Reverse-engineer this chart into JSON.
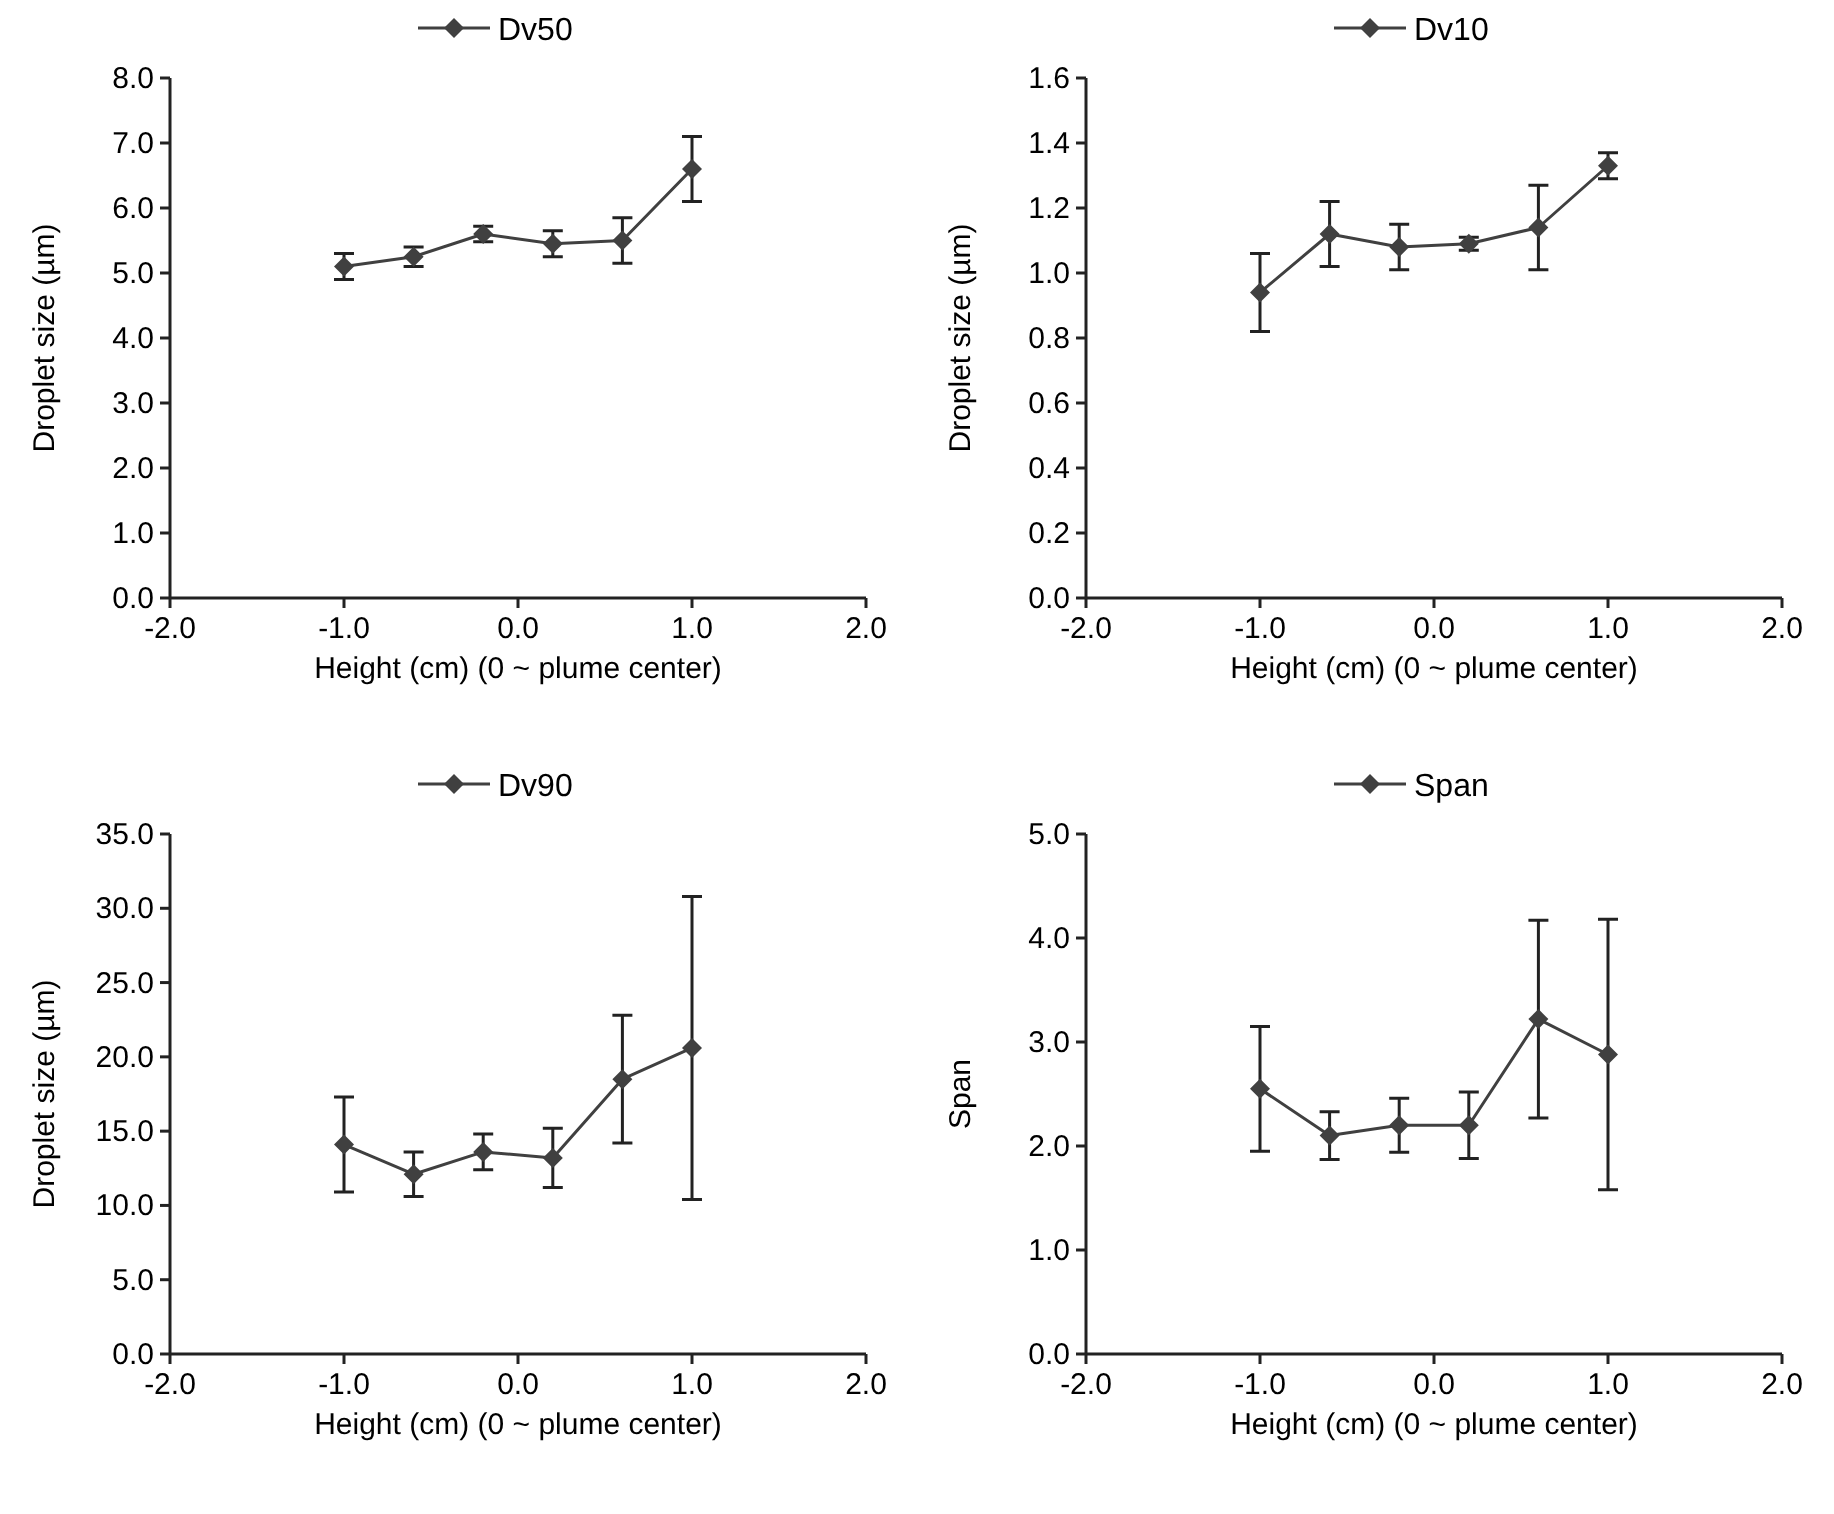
{
  "chart_data": [
    {
      "type": "line",
      "xlabel": "Height (cm) (0 ~ plume center)",
      "ylabel": "Droplet size (µm)",
      "x": [
        -1,
        -0.6,
        -0.2,
        0.2,
        0.6,
        1
      ],
      "series": [
        {
          "name": "Dv50",
          "color": "#404040",
          "values": [
            5.1,
            5.25,
            5.6,
            5.45,
            5.5,
            6.6
          ],
          "errors": [
            0.2,
            0.15,
            0.12,
            0.2,
            0.35,
            0.5
          ]
        }
      ],
      "xlim": [
        -2,
        2
      ],
      "xticks": [
        {
          "value": -2,
          "label": "-2.0"
        },
        {
          "value": -1,
          "label": "-1.0"
        },
        {
          "value": 0,
          "label": "0.0"
        },
        {
          "value": 1,
          "label": "1.0"
        },
        {
          "value": 2,
          "label": "2.0"
        }
      ],
      "ylim": [
        0,
        8
      ],
      "yticks": [
        {
          "value": 0,
          "label": "0.0"
        },
        {
          "value": 1,
          "label": "1.0"
        },
        {
          "value": 2,
          "label": "2.0"
        },
        {
          "value": 3,
          "label": "3.0"
        },
        {
          "value": 4,
          "label": "4.0"
        },
        {
          "value": 5,
          "label": "5.0"
        },
        {
          "value": 6,
          "label": "6.0"
        },
        {
          "value": 7,
          "label": "7.0"
        },
        {
          "value": 8,
          "label": "8.0"
        }
      ],
      "legend": "top",
      "marker": "diamond",
      "grid": false
    },
    {
      "type": "line",
      "xlabel": "Height (cm) (0 ~ plume center)",
      "ylabel": "Droplet size (µm)",
      "x": [
        -1,
        -0.6,
        -0.2,
        0.2,
        0.6,
        1
      ],
      "series": [
        {
          "name": "Dv10",
          "color": "#404040",
          "values": [
            0.94,
            1.12,
            1.08,
            1.09,
            1.14,
            1.33
          ],
          "errors": [
            0.12,
            0.1,
            0.07,
            0.02,
            0.13,
            0.04
          ]
        }
      ],
      "xlim": [
        -2,
        2
      ],
      "xticks": [
        {
          "value": -2,
          "label": "-2.0"
        },
        {
          "value": -1,
          "label": "-1.0"
        },
        {
          "value": 0,
          "label": "0.0"
        },
        {
          "value": 1,
          "label": "1.0"
        },
        {
          "value": 2,
          "label": "2.0"
        }
      ],
      "ylim": [
        0,
        1.6
      ],
      "yticks": [
        {
          "value": 0,
          "label": "0.0"
        },
        {
          "value": 0.2,
          "label": "0.2"
        },
        {
          "value": 0.4,
          "label": "0.4"
        },
        {
          "value": 0.6,
          "label": "0.6"
        },
        {
          "value": 0.8,
          "label": "0.8"
        },
        {
          "value": 1,
          "label": "1.0"
        },
        {
          "value": 1.2,
          "label": "1.2"
        },
        {
          "value": 1.4,
          "label": "1.4"
        },
        {
          "value": 1.6,
          "label": "1.6"
        }
      ],
      "legend": "top",
      "marker": "diamond",
      "grid": false
    },
    {
      "type": "line",
      "xlabel": "Height (cm) (0 ~ plume center)",
      "ylabel": "Droplet size (µm)",
      "x": [
        -1,
        -0.6,
        -0.2,
        0.2,
        0.6,
        1
      ],
      "series": [
        {
          "name": "Dv90",
          "color": "#404040",
          "values": [
            14.1,
            12.1,
            13.6,
            13.2,
            18.5,
            20.6
          ],
          "errors": [
            3.2,
            1.5,
            1.2,
            2.0,
            4.3,
            10.2
          ]
        }
      ],
      "xlim": [
        -2,
        2
      ],
      "xticks": [
        {
          "value": -2,
          "label": "-2.0"
        },
        {
          "value": -1,
          "label": "-1.0"
        },
        {
          "value": 0,
          "label": "0.0"
        },
        {
          "value": 1,
          "label": "1.0"
        },
        {
          "value": 2,
          "label": "2.0"
        }
      ],
      "ylim": [
        0,
        35
      ],
      "yticks": [
        {
          "value": 0,
          "label": "0.0"
        },
        {
          "value": 5,
          "label": "5.0"
        },
        {
          "value": 10,
          "label": "10.0"
        },
        {
          "value": 15,
          "label": "15.0"
        },
        {
          "value": 20,
          "label": "20.0"
        },
        {
          "value": 25,
          "label": "25.0"
        },
        {
          "value": 30,
          "label": "30.0"
        },
        {
          "value": 35,
          "label": "35.0"
        }
      ],
      "legend": "top",
      "marker": "diamond",
      "grid": false
    },
    {
      "type": "line",
      "xlabel": "Height (cm) (0 ~ plume center)",
      "ylabel": "Span",
      "x": [
        -1,
        -0.6,
        -0.2,
        0.2,
        0.6,
        1
      ],
      "series": [
        {
          "name": "Span",
          "color": "#404040",
          "values": [
            2.55,
            2.1,
            2.2,
            2.2,
            3.22,
            2.88
          ],
          "errors": [
            0.6,
            0.23,
            0.26,
            0.32,
            0.95,
            1.3
          ]
        }
      ],
      "xlim": [
        -2,
        2
      ],
      "xticks": [
        {
          "value": -2,
          "label": "-2.0"
        },
        {
          "value": -1,
          "label": "-1.0"
        },
        {
          "value": 0,
          "label": "0.0"
        },
        {
          "value": 1,
          "label": "1.0"
        },
        {
          "value": 2,
          "label": "2.0"
        }
      ],
      "ylim": [
        0,
        5
      ],
      "yticks": [
        {
          "value": 0,
          "label": "0.0"
        },
        {
          "value": 1,
          "label": "1.0"
        },
        {
          "value": 2,
          "label": "2.0"
        },
        {
          "value": 3,
          "label": "3.0"
        },
        {
          "value": 4,
          "label": "4.0"
        },
        {
          "value": 5,
          "label": "5.0"
        }
      ],
      "legend": "top",
      "marker": "diamond",
      "grid": false
    }
  ]
}
